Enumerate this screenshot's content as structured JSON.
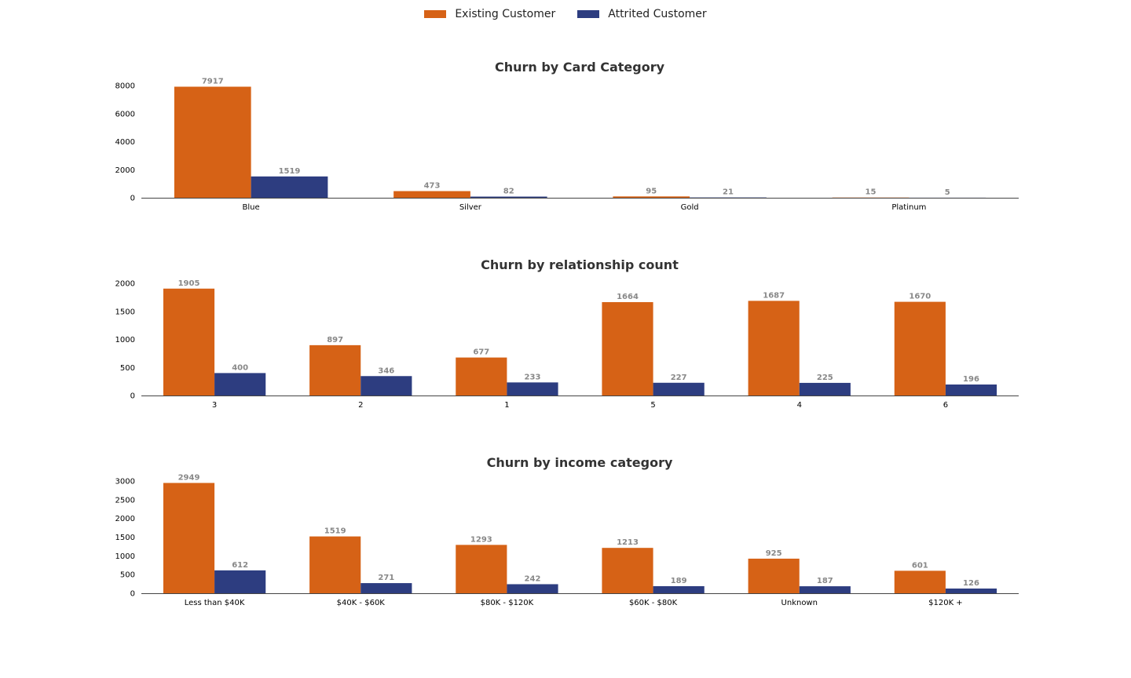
{
  "legend": {
    "items": [
      {
        "label": "Existing Customer",
        "color": "#d66216"
      },
      {
        "label": "Attrited Customer",
        "color": "#2d3d80"
      }
    ]
  },
  "chart_data": [
    {
      "type": "bar",
      "title": "Churn by Card Category",
      "categories": [
        "Blue",
        "Silver",
        "Gold",
        "Platinum"
      ],
      "series": [
        {
          "name": "Existing Customer",
          "values": [
            7917,
            473,
            95,
            15
          ]
        },
        {
          "name": "Attrited Customer",
          "values": [
            1519,
            82,
            21,
            5
          ]
        }
      ],
      "yticks": [
        0,
        2000,
        4000,
        6000,
        8000
      ],
      "ylim": [
        0,
        8000
      ],
      "xlabel": "",
      "ylabel": "",
      "legend": "top-center",
      "grid": false
    },
    {
      "type": "bar",
      "title": "Churn by relationship count",
      "categories": [
        "3",
        "2",
        "1",
        "5",
        "4",
        "6"
      ],
      "series": [
        {
          "name": "Existing Customer",
          "values": [
            1905,
            897,
            677,
            1664,
            1687,
            1670
          ]
        },
        {
          "name": "Attrited Customer",
          "values": [
            400,
            346,
            233,
            227,
            225,
            196
          ]
        }
      ],
      "yticks": [
        0,
        500,
        1000,
        1500,
        2000
      ],
      "ylim": [
        0,
        2000
      ],
      "xlabel": "",
      "ylabel": "",
      "legend": "top-center",
      "grid": false
    },
    {
      "type": "bar",
      "title": "Churn by income category",
      "categories": [
        "Less than $40K",
        "$40K - $60K",
        "$80K - $120K",
        "$60K - $80K",
        "Unknown",
        "$120K +"
      ],
      "series": [
        {
          "name": "Existing Customer",
          "values": [
            2949,
            1519,
            1293,
            1213,
            925,
            601
          ]
        },
        {
          "name": "Attrited Customer",
          "values": [
            612,
            271,
            242,
            189,
            187,
            126
          ]
        }
      ],
      "yticks": [
        0,
        500,
        1000,
        1500,
        2000,
        2500,
        3000
      ],
      "ylim": [
        0,
        3000
      ],
      "xlabel": "",
      "ylabel": "",
      "legend": "top-center",
      "grid": false
    }
  ]
}
